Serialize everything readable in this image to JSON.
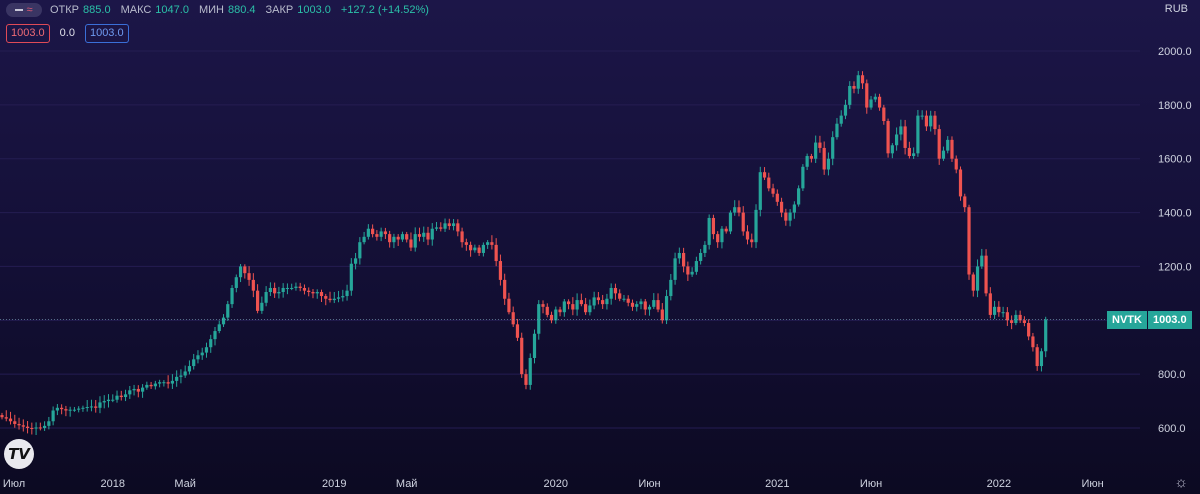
{
  "legend": {
    "open_label": "ОТКР",
    "open_value": "885.0",
    "high_label": "МАКС",
    "high_value": "1047.0",
    "low_label": "МИН",
    "low_value": "880.4",
    "close_label": "ЗАКР",
    "close_value": "1003.0",
    "change": "+127.2 (+14.52%)"
  },
  "badges": {
    "bid": "1003.0",
    "spread": "0.0",
    "ask": "1003.0"
  },
  "currency": "RUB",
  "price_tag": {
    "symbol": "NVTK",
    "value": "1003.0"
  },
  "colors": {
    "up": "#26a69a",
    "down": "#ef5350",
    "background": "#160f3a"
  },
  "chart_data": {
    "type": "candlestick",
    "y_ticks": [
      "600.0",
      "800.0",
      "1000.0",
      "1200.0",
      "1400.0",
      "1600.0",
      "1800.0",
      "2000.0"
    ],
    "ylim": [
      535,
      2090
    ],
    "x_ticks": [
      {
        "label": "Июл",
        "week": 0
      },
      {
        "label": "2018",
        "week": 26
      },
      {
        "label": "Май",
        "week": 43
      },
      {
        "label": "2019",
        "week": 78
      },
      {
        "label": "Май",
        "week": 95
      },
      {
        "label": "2020",
        "week": 130
      },
      {
        "label": "Июн",
        "week": 152
      },
      {
        "label": "2021",
        "week": 182
      },
      {
        "label": "Июн",
        "week": 204
      },
      {
        "label": "2022",
        "week": 234
      },
      {
        "label": "Июн",
        "week": 256
      }
    ],
    "last_price": 1003.0,
    "closes": [
      640,
      635,
      625,
      615,
      610,
      605,
      600,
      598,
      602,
      600,
      608,
      625,
      665,
      675,
      670,
      665,
      668,
      668,
      672,
      675,
      678,
      680,
      675,
      695,
      700,
      705,
      705,
      720,
      715,
      725,
      740,
      745,
      735,
      750,
      760,
      755,
      765,
      770,
      770,
      765,
      775,
      790,
      795,
      810,
      830,
      855,
      870,
      880,
      900,
      930,
      960,
      985,
      1010,
      1060,
      1120,
      1160,
      1200,
      1175,
      1150,
      1110,
      1035,
      1065,
      1105,
      1120,
      1100,
      1105,
      1120,
      1120,
      1120,
      1125,
      1120,
      1110,
      1105,
      1100,
      1105,
      1090,
      1080,
      1075,
      1080,
      1085,
      1090,
      1110,
      1210,
      1230,
      1290,
      1310,
      1340,
      1320,
      1310,
      1330,
      1320,
      1290,
      1310,
      1300,
      1320,
      1300,
      1270,
      1320,
      1310,
      1325,
      1300,
      1340,
      1345,
      1340,
      1360,
      1350,
      1360,
      1330,
      1290,
      1280,
      1260,
      1270,
      1250,
      1280,
      1290,
      1280,
      1220,
      1150,
      1080,
      1030,
      985,
      935,
      800,
      760,
      860,
      950,
      1060,
      1050,
      1020,
      1000,
      1040,
      1030,
      1070,
      1060,
      1040,
      1075,
      1060,
      1030,
      1055,
      1085,
      1075,
      1060,
      1080,
      1120,
      1100,
      1080,
      1080,
      1065,
      1050,
      1060,
      1070,
      1040,
      1050,
      1075,
      1040,
      1000,
      1090,
      1150,
      1230,
      1250,
      1200,
      1170,
      1180,
      1220,
      1250,
      1280,
      1380,
      1320,
      1290,
      1340,
      1330,
      1400,
      1420,
      1400,
      1330,
      1300,
      1290,
      1410,
      1550,
      1530,
      1490,
      1470,
      1440,
      1400,
      1370,
      1400,
      1430,
      1490,
      1570,
      1610,
      1600,
      1660,
      1640,
      1560,
      1600,
      1680,
      1730,
      1760,
      1800,
      1870,
      1860,
      1910,
      1880,
      1790,
      1820,
      1830,
      1790,
      1740,
      1620,
      1650,
      1690,
      1720,
      1640,
      1610,
      1620,
      1760,
      1760,
      1720,
      1760,
      1710,
      1600,
      1630,
      1670,
      1600,
      1560,
      1460,
      1420,
      1170,
      1110,
      1200,
      1240,
      1100,
      1020,
      1050,
      1030,
      1030,
      1000,
      990,
      1020,
      1000,
      990,
      940,
      900,
      830,
      885,
      1003
    ]
  }
}
